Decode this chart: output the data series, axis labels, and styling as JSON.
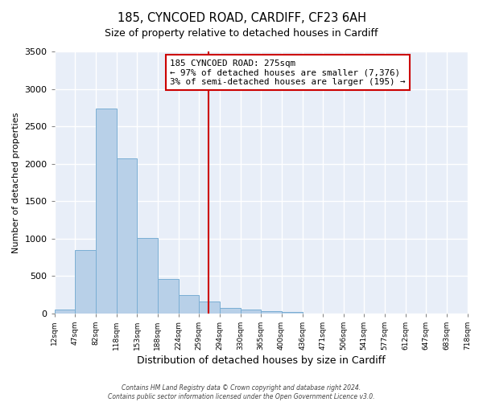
{
  "title": "185, CYNCOED ROAD, CARDIFF, CF23 6AH",
  "subtitle": "Size of property relative to detached houses in Cardiff",
  "xlabel": "Distribution of detached houses by size in Cardiff",
  "ylabel": "Number of detached properties",
  "bar_values": [
    55,
    850,
    2740,
    2070,
    1010,
    455,
    245,
    155,
    75,
    55,
    30,
    20,
    0,
    0,
    0,
    0,
    0,
    0,
    0,
    0
  ],
  "bar_color": "#b8d0e8",
  "bar_edge_color": "#7aaed4",
  "vline_color": "#cc0000",
  "vline_x": 275,
  "ylim": [
    0,
    3500
  ],
  "yticks": [
    0,
    500,
    1000,
    1500,
    2000,
    2500,
    3000,
    3500
  ],
  "annotation_title": "185 CYNCOED ROAD: 275sqm",
  "annotation_line1": "← 97% of detached houses are smaller (7,376)",
  "annotation_line2": "3% of semi-detached houses are larger (195) →",
  "annotation_box_color": "#cc0000",
  "footer1": "Contains HM Land Registry data © Crown copyright and database right 2024.",
  "footer2": "Contains public sector information licensed under the Open Government Licence v3.0.",
  "bg_color": "#ffffff",
  "plot_bg_color": "#e8eef8",
  "grid_color": "#ffffff",
  "bin_edges": [
    12,
    47,
    82,
    118,
    153,
    188,
    224,
    259,
    294,
    330,
    365,
    400,
    436,
    471,
    506,
    541,
    577,
    612,
    647,
    683,
    718
  ]
}
